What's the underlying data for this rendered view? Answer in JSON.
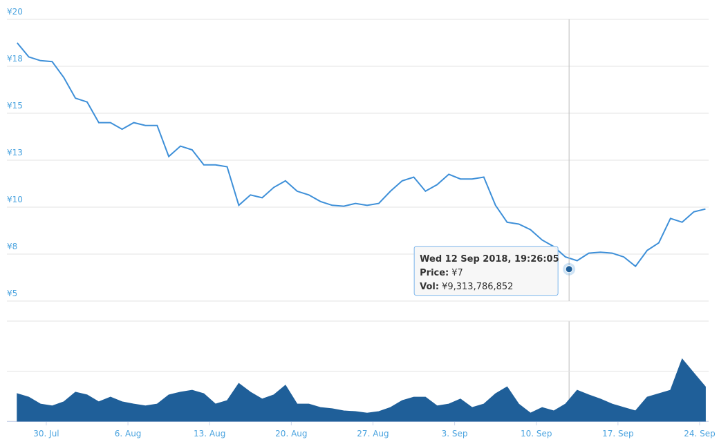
{
  "chart_data": [
    {
      "type": "line",
      "x": [
        "2018-07-27T12:00",
        "2018-07-28T12:00",
        "2018-07-29T12:00",
        "2018-07-30T12:00",
        "2018-07-31T12:00",
        "2018-08-01T12:00",
        "2018-08-02T12:00",
        "2018-08-03T12:00",
        "2018-08-04T12:00",
        "2018-08-05T12:00",
        "2018-08-06T12:00",
        "2018-08-07T12:00",
        "2018-08-08T12:00",
        "2018-08-09T12:00",
        "2018-08-10T12:00",
        "2018-08-11T12:00",
        "2018-08-12T12:00",
        "2018-08-13T12:00",
        "2018-08-14T12:00",
        "2018-08-15T12:00",
        "2018-08-16T12:00",
        "2018-08-17T12:00",
        "2018-08-18T12:00",
        "2018-08-19T12:00",
        "2018-08-20T12:00",
        "2018-08-21T12:00",
        "2018-08-22T12:00",
        "2018-08-23T12:00",
        "2018-08-24T12:00",
        "2018-08-25T12:00",
        "2018-08-26T12:00",
        "2018-08-27T12:00",
        "2018-08-28T12:00",
        "2018-08-29T12:00",
        "2018-08-30T12:00",
        "2018-08-31T12:00",
        "2018-09-01T12:00",
        "2018-09-02T12:00",
        "2018-09-03T12:00",
        "2018-09-04T12:00",
        "2018-09-05T12:00",
        "2018-09-06T12:00",
        "2018-09-07T12:00",
        "2018-09-08T12:00",
        "2018-09-09T12:00",
        "2018-09-10T12:00",
        "2018-09-11T12:00",
        "2018-09-12T12:00",
        "2018-09-13T12:00",
        "2018-09-14T12:00",
        "2018-09-15T12:00",
        "2018-09-16T12:00",
        "2018-09-17T12:00",
        "2018-09-18T12:00",
        "2018-09-19T12:00",
        "2018-09-20T12:00",
        "2018-09-21T12:00",
        "2018-09-22T12:00",
        "2018-09-23T12:00",
        "2018-09-24T12:00"
      ],
      "series": [
        {
          "color": "#3d8fd8",
          "values": [
            18.75,
            18.0,
            17.8,
            17.75,
            16.9,
            15.8,
            15.6,
            14.5,
            14.5,
            14.15,
            14.5,
            14.35,
            14.35,
            12.7,
            13.25,
            13.05,
            12.25,
            12.25,
            12.15,
            10.1,
            10.65,
            10.5,
            11.05,
            11.4,
            10.85,
            10.65,
            10.3,
            10.1,
            10.05,
            10.2,
            10.1,
            10.2,
            10.85,
            11.4,
            11.6,
            10.85,
            11.2,
            11.75,
            11.5,
            11.5,
            11.6,
            10.1,
            9.2,
            9.1,
            8.8,
            8.25,
            7.9,
            7.35,
            7.15,
            7.55,
            7.6,
            7.55,
            7.35,
            6.85,
            7.7,
            8.1,
            9.4,
            9.2,
            9.75,
            9.9
          ]
        }
      ],
      "xlim": [
        "2018-07-26T15:00",
        "2018-09-24T18:30"
      ],
      "ylim": [
        5,
        20
      ],
      "yticks": [
        {
          "value": 20,
          "label": "¥20"
        },
        {
          "value": 17.5,
          "label": "¥18"
        },
        {
          "value": 15,
          "label": "¥15"
        },
        {
          "value": 12.5,
          "label": "¥13"
        },
        {
          "value": 10,
          "label": "¥10"
        },
        {
          "value": 7.5,
          "label": "¥8"
        },
        {
          "value": 5,
          "label": "¥5"
        }
      ],
      "grid": true,
      "tooltip": {
        "x": "2018-09-12T19:26:05",
        "title": "Wed 12 Sep 2018, 19:26:05",
        "price": {
          "label": "Price:",
          "value": 6.7,
          "value_label": "¥7"
        },
        "volume": {
          "label": "Vol:",
          "value": 9313786852,
          "value_label": "¥9,313,786,852"
        }
      }
    },
    {
      "type": "area",
      "x": [
        "2018-07-27T12:00",
        "2018-07-28T12:00",
        "2018-07-29T12:00",
        "2018-07-30T12:00",
        "2018-07-31T12:00",
        "2018-08-01T12:00",
        "2018-08-02T12:00",
        "2018-08-03T12:00",
        "2018-08-04T12:00",
        "2018-08-05T12:00",
        "2018-08-06T12:00",
        "2018-08-07T12:00",
        "2018-08-08T12:00",
        "2018-08-09T12:00",
        "2018-08-10T12:00",
        "2018-08-11T12:00",
        "2018-08-12T12:00",
        "2018-08-13T12:00",
        "2018-08-14T12:00",
        "2018-08-15T12:00",
        "2018-08-16T12:00",
        "2018-08-17T12:00",
        "2018-08-18T12:00",
        "2018-08-19T12:00",
        "2018-08-20T12:00",
        "2018-08-21T12:00",
        "2018-08-22T12:00",
        "2018-08-23T12:00",
        "2018-08-24T12:00",
        "2018-08-25T12:00",
        "2018-08-26T12:00",
        "2018-08-27T12:00",
        "2018-08-28T12:00",
        "2018-08-29T12:00",
        "2018-08-30T12:00",
        "2018-08-31T12:00",
        "2018-09-01T12:00",
        "2018-09-02T12:00",
        "2018-09-03T12:00",
        "2018-09-04T12:00",
        "2018-09-05T12:00",
        "2018-09-06T12:00",
        "2018-09-07T12:00",
        "2018-09-08T12:00",
        "2018-09-09T12:00",
        "2018-09-10T12:00",
        "2018-09-11T12:00",
        "2018-09-12T12:00",
        "2018-09-13T12:00",
        "2018-09-14T12:00",
        "2018-09-15T12:00",
        "2018-09-16T12:00",
        "2018-09-17T12:00",
        "2018-09-18T12:00",
        "2018-09-19T12:00",
        "2018-09-20T12:00",
        "2018-09-21T12:00",
        "2018-09-22T12:00",
        "2018-09-23T12:00",
        "2018-09-24T12:00"
      ],
      "series": [
        {
          "color": "#1f5f99",
          "values": [
            8800000000,
            7700000000,
            5500000000,
            4900000000,
            6200000000,
            9300000000,
            8400000000,
            6200000000,
            7700000000,
            6200000000,
            5500000000,
            4900000000,
            5500000000,
            8400000000,
            9300000000,
            9900000000,
            8800000000,
            5500000000,
            6600000000,
            12100000000,
            9300000000,
            7100000000,
            8400000000,
            11500000000,
            5500000000,
            5500000000,
            4400000000,
            4000000000,
            3300000000,
            3100000000,
            2600000000,
            3100000000,
            4400000000,
            6600000000,
            7700000000,
            7700000000,
            4900000000,
            5500000000,
            7100000000,
            4400000000,
            5500000000,
            8800000000,
            11000000000,
            5500000000,
            2600000000,
            4400000000,
            3300000000,
            5500000000,
            9900000000,
            8400000000,
            7100000000,
            5500000000,
            4400000000,
            3300000000,
            7700000000,
            8800000000,
            9900000000,
            19900000000,
            15400000000,
            11000000000
          ]
        }
      ],
      "xlim": [
        "2018-07-26T15:00",
        "2018-09-24T18:30"
      ],
      "xticks": [
        {
          "value": "2018-07-30T00:00",
          "label": "30. Jul"
        },
        {
          "value": "2018-08-06T00:00",
          "label": "6. Aug"
        },
        {
          "value": "2018-08-13T00:00",
          "label": "13. Aug"
        },
        {
          "value": "2018-08-20T00:00",
          "label": "20. Aug"
        },
        {
          "value": "2018-08-27T00:00",
          "label": "27. Aug"
        },
        {
          "value": "2018-09-03T00:00",
          "label": "3. Sep"
        },
        {
          "value": "2018-09-10T00:00",
          "label": "10. Sep"
        },
        {
          "value": "2018-09-17T00:00",
          "label": "17. Sep"
        },
        {
          "value": "2018-09-24T00:00",
          "label": "24. Sep"
        }
      ],
      "ylim": [
        0,
        32000000000
      ],
      "yticks": [
        0,
        16000000000,
        32000000000
      ],
      "grid": true
    }
  ]
}
